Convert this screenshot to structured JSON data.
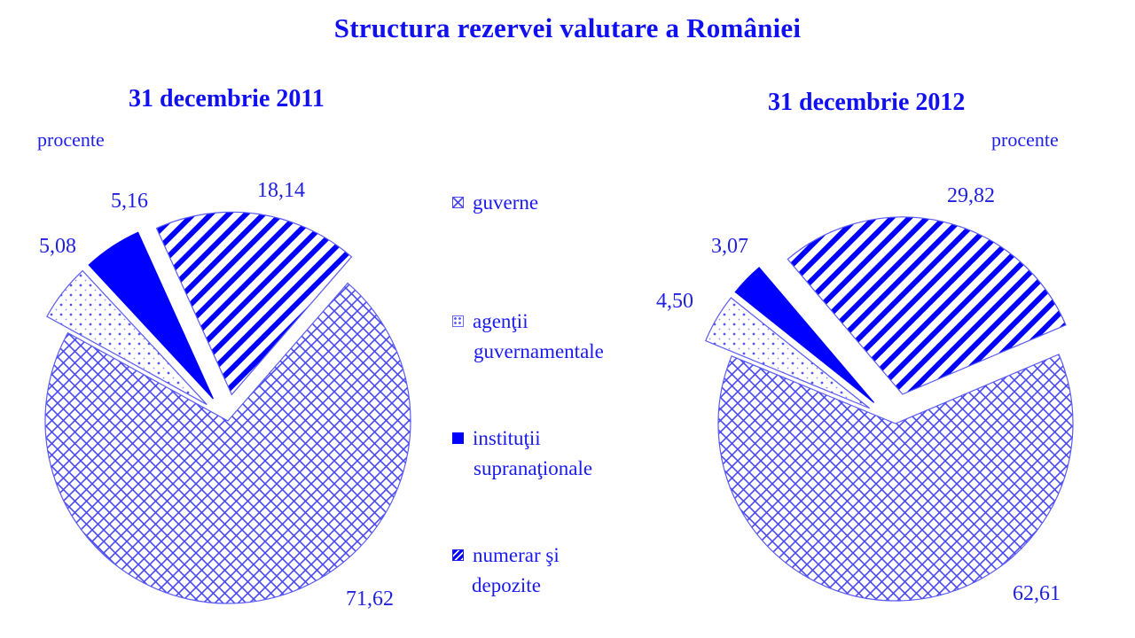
{
  "title": "Structura rezervei valutare a României",
  "legend": [
    {
      "key": "guverne",
      "line1": "guverne",
      "line2": "",
      "pattern": "crosshatch"
    },
    {
      "key": "agentii",
      "line1": "agenţii",
      "line2": "guvernamentale",
      "pattern": "dots"
    },
    {
      "key": "institutii",
      "line1": "instituţii",
      "line2": "supranaţionale",
      "pattern": "solid"
    },
    {
      "key": "numerar",
      "line1": "numerar şi",
      "line2": "depozite",
      "pattern": "stripes"
    }
  ],
  "colors": {
    "primary": "#0000ff",
    "text": "#1a1af0",
    "hatch": "#4a4af0",
    "background": "#ffffff"
  },
  "charts": [
    {
      "subtitle": "31 decembrie 2011",
      "unit": "procente",
      "labels": {
        "guverne": "71,62",
        "agentii": "5,08",
        "institutii": "5,16",
        "numerar": "18,14"
      }
    },
    {
      "subtitle": "31 decembrie 2012",
      "unit": "procente",
      "labels": {
        "guverne": "62,61",
        "agentii": "4,50",
        "institutii": "3,07",
        "numerar": "29,82"
      }
    }
  ],
  "chart_data": [
    {
      "type": "pie",
      "title": "Structura rezervei valutare a României — 31 decembrie 2011",
      "unit": "procente",
      "categories": [
        "guverne",
        "agenţii guvernamentale",
        "instituţii supranaţionale",
        "numerar şi depozite"
      ],
      "values": [
        71.62,
        5.08,
        5.16,
        18.14
      ],
      "exploded": [
        false,
        true,
        true,
        true
      ],
      "legend_position": "center"
    },
    {
      "type": "pie",
      "title": "Structura rezervei valutare a României — 31 decembrie 2012",
      "unit": "procente",
      "categories": [
        "guverne",
        "agenţii guvernamentale",
        "instituţii supranaţionale",
        "numerar şi depozite"
      ],
      "values": [
        62.61,
        4.5,
        3.07,
        29.82
      ],
      "exploded": [
        false,
        true,
        true,
        true
      ],
      "legend_position": "center"
    }
  ]
}
